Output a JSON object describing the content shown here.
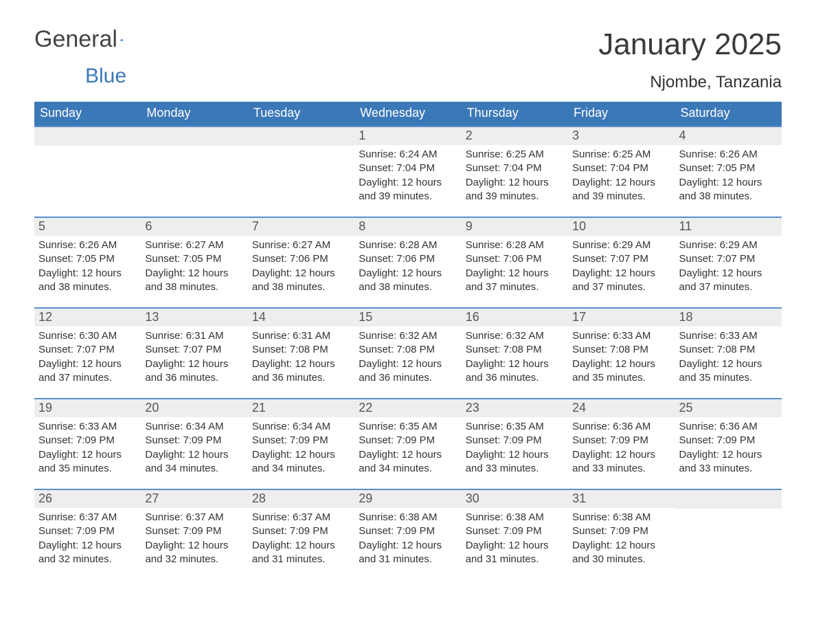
{
  "logo": {
    "text1": "General",
    "text2": "Blue"
  },
  "header": {
    "title": "January 2025",
    "location": "Njombe, Tanzania"
  },
  "colors": {
    "header_bg": "#3b78b8",
    "header_text": "#ffffff",
    "row_border": "#5a8fc9",
    "daynum_bg": "#eeeeee",
    "text": "#333333"
  },
  "day_names": [
    "Sunday",
    "Monday",
    "Tuesday",
    "Wednesday",
    "Thursday",
    "Friday",
    "Saturday"
  ],
  "weeks": [
    [
      null,
      null,
      null,
      {
        "n": "1",
        "sunrise": "6:24 AM",
        "sunset": "7:04 PM",
        "dl1": "Daylight: 12 hours",
        "dl2": "and 39 minutes."
      },
      {
        "n": "2",
        "sunrise": "6:25 AM",
        "sunset": "7:04 PM",
        "dl1": "Daylight: 12 hours",
        "dl2": "and 39 minutes."
      },
      {
        "n": "3",
        "sunrise": "6:25 AM",
        "sunset": "7:04 PM",
        "dl1": "Daylight: 12 hours",
        "dl2": "and 39 minutes."
      },
      {
        "n": "4",
        "sunrise": "6:26 AM",
        "sunset": "7:05 PM",
        "dl1": "Daylight: 12 hours",
        "dl2": "and 38 minutes."
      }
    ],
    [
      {
        "n": "5",
        "sunrise": "6:26 AM",
        "sunset": "7:05 PM",
        "dl1": "Daylight: 12 hours",
        "dl2": "and 38 minutes."
      },
      {
        "n": "6",
        "sunrise": "6:27 AM",
        "sunset": "7:05 PM",
        "dl1": "Daylight: 12 hours",
        "dl2": "and 38 minutes."
      },
      {
        "n": "7",
        "sunrise": "6:27 AM",
        "sunset": "7:06 PM",
        "dl1": "Daylight: 12 hours",
        "dl2": "and 38 minutes."
      },
      {
        "n": "8",
        "sunrise": "6:28 AM",
        "sunset": "7:06 PM",
        "dl1": "Daylight: 12 hours",
        "dl2": "and 38 minutes."
      },
      {
        "n": "9",
        "sunrise": "6:28 AM",
        "sunset": "7:06 PM",
        "dl1": "Daylight: 12 hours",
        "dl2": "and 37 minutes."
      },
      {
        "n": "10",
        "sunrise": "6:29 AM",
        "sunset": "7:07 PM",
        "dl1": "Daylight: 12 hours",
        "dl2": "and 37 minutes."
      },
      {
        "n": "11",
        "sunrise": "6:29 AM",
        "sunset": "7:07 PM",
        "dl1": "Daylight: 12 hours",
        "dl2": "and 37 minutes."
      }
    ],
    [
      {
        "n": "12",
        "sunrise": "6:30 AM",
        "sunset": "7:07 PM",
        "dl1": "Daylight: 12 hours",
        "dl2": "and 37 minutes."
      },
      {
        "n": "13",
        "sunrise": "6:31 AM",
        "sunset": "7:07 PM",
        "dl1": "Daylight: 12 hours",
        "dl2": "and 36 minutes."
      },
      {
        "n": "14",
        "sunrise": "6:31 AM",
        "sunset": "7:08 PM",
        "dl1": "Daylight: 12 hours",
        "dl2": "and 36 minutes."
      },
      {
        "n": "15",
        "sunrise": "6:32 AM",
        "sunset": "7:08 PM",
        "dl1": "Daylight: 12 hours",
        "dl2": "and 36 minutes."
      },
      {
        "n": "16",
        "sunrise": "6:32 AM",
        "sunset": "7:08 PM",
        "dl1": "Daylight: 12 hours",
        "dl2": "and 36 minutes."
      },
      {
        "n": "17",
        "sunrise": "6:33 AM",
        "sunset": "7:08 PM",
        "dl1": "Daylight: 12 hours",
        "dl2": "and 35 minutes."
      },
      {
        "n": "18",
        "sunrise": "6:33 AM",
        "sunset": "7:08 PM",
        "dl1": "Daylight: 12 hours",
        "dl2": "and 35 minutes."
      }
    ],
    [
      {
        "n": "19",
        "sunrise": "6:33 AM",
        "sunset": "7:09 PM",
        "dl1": "Daylight: 12 hours",
        "dl2": "and 35 minutes."
      },
      {
        "n": "20",
        "sunrise": "6:34 AM",
        "sunset": "7:09 PM",
        "dl1": "Daylight: 12 hours",
        "dl2": "and 34 minutes."
      },
      {
        "n": "21",
        "sunrise": "6:34 AM",
        "sunset": "7:09 PM",
        "dl1": "Daylight: 12 hours",
        "dl2": "and 34 minutes."
      },
      {
        "n": "22",
        "sunrise": "6:35 AM",
        "sunset": "7:09 PM",
        "dl1": "Daylight: 12 hours",
        "dl2": "and 34 minutes."
      },
      {
        "n": "23",
        "sunrise": "6:35 AM",
        "sunset": "7:09 PM",
        "dl1": "Daylight: 12 hours",
        "dl2": "and 33 minutes."
      },
      {
        "n": "24",
        "sunrise": "6:36 AM",
        "sunset": "7:09 PM",
        "dl1": "Daylight: 12 hours",
        "dl2": "and 33 minutes."
      },
      {
        "n": "25",
        "sunrise": "6:36 AM",
        "sunset": "7:09 PM",
        "dl1": "Daylight: 12 hours",
        "dl2": "and 33 minutes."
      }
    ],
    [
      {
        "n": "26",
        "sunrise": "6:37 AM",
        "sunset": "7:09 PM",
        "dl1": "Daylight: 12 hours",
        "dl2": "and 32 minutes."
      },
      {
        "n": "27",
        "sunrise": "6:37 AM",
        "sunset": "7:09 PM",
        "dl1": "Daylight: 12 hours",
        "dl2": "and 32 minutes."
      },
      {
        "n": "28",
        "sunrise": "6:37 AM",
        "sunset": "7:09 PM",
        "dl1": "Daylight: 12 hours",
        "dl2": "and 31 minutes."
      },
      {
        "n": "29",
        "sunrise": "6:38 AM",
        "sunset": "7:09 PM",
        "dl1": "Daylight: 12 hours",
        "dl2": "and 31 minutes."
      },
      {
        "n": "30",
        "sunrise": "6:38 AM",
        "sunset": "7:09 PM",
        "dl1": "Daylight: 12 hours",
        "dl2": "and 31 minutes."
      },
      {
        "n": "31",
        "sunrise": "6:38 AM",
        "sunset": "7:09 PM",
        "dl1": "Daylight: 12 hours",
        "dl2": "and 30 minutes."
      },
      null
    ]
  ],
  "labels": {
    "sunrise": "Sunrise: ",
    "sunset": "Sunset: "
  }
}
